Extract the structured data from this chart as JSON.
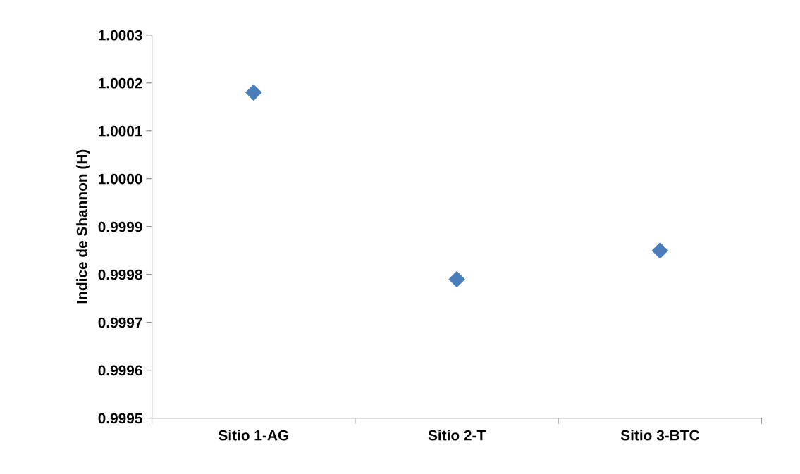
{
  "chart_data": {
    "type": "scatter",
    "ylabel": "Indice de Shannon (H)",
    "categories": [
      "Sitio 1-AG",
      "Sitio 2-T",
      "Sitio 3-BTC"
    ],
    "series": [
      {
        "color": "#4a7ebb",
        "values": [
          1.00018,
          0.99979,
          0.99985
        ]
      }
    ],
    "marker": "diamond",
    "grid": false,
    "legend": false,
    "ylim": [
      0.9995,
      1.0003
    ],
    "yticks": [
      {
        "value": 0.9995,
        "label": "0.9995"
      },
      {
        "value": 0.9996,
        "label": "0.9996"
      },
      {
        "value": 0.9997,
        "label": "0.9997"
      },
      {
        "value": 0.9998,
        "label": "0.9998"
      },
      {
        "value": 0.9999,
        "label": "0.9999"
      },
      {
        "value": 1.0,
        "label": "1.0000"
      },
      {
        "value": 1.0001,
        "label": "1.0001"
      },
      {
        "value": 1.0002,
        "label": "1.0002"
      },
      {
        "value": 1.0003,
        "label": "1.0003"
      }
    ]
  }
}
